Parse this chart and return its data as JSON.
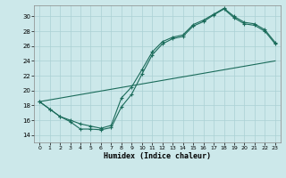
{
  "xlabel": "Humidex (Indice chaleur)",
  "bg_color": "#cce8ea",
  "grid_color": "#aad0d4",
  "line_color": "#1a6b5a",
  "ylim": [
    13.0,
    31.5
  ],
  "xlim": [
    -0.5,
    23.5
  ],
  "yticks": [
    14,
    16,
    18,
    20,
    22,
    24,
    26,
    28,
    30
  ],
  "xticks": [
    0,
    1,
    2,
    3,
    4,
    5,
    6,
    7,
    8,
    9,
    10,
    11,
    12,
    13,
    14,
    15,
    16,
    17,
    18,
    19,
    20,
    21,
    22,
    23
  ],
  "curve1_x": [
    0,
    1,
    2,
    3,
    4,
    5,
    6,
    7,
    8,
    9,
    10,
    11,
    12,
    13,
    14,
    15,
    16,
    17,
    18,
    19,
    20,
    21,
    22,
    23
  ],
  "curve1_y": [
    18.5,
    17.5,
    16.5,
    15.8,
    14.8,
    14.8,
    14.7,
    15.0,
    17.8,
    19.5,
    22.2,
    24.8,
    26.3,
    27.0,
    27.3,
    28.7,
    29.3,
    30.2,
    31.0,
    29.8,
    29.0,
    28.8,
    28.0,
    26.3
  ],
  "curve2_x": [
    0,
    1,
    2,
    3,
    4,
    5,
    6,
    7,
    8,
    9,
    10,
    11,
    12,
    13,
    14,
    15,
    16,
    17,
    18,
    19,
    20,
    21,
    22,
    23
  ],
  "curve2_y": [
    18.5,
    17.5,
    16.5,
    16.0,
    15.5,
    15.2,
    14.9,
    15.3,
    19.0,
    20.5,
    22.8,
    25.2,
    26.6,
    27.2,
    27.5,
    28.9,
    29.5,
    30.3,
    31.1,
    30.0,
    29.2,
    29.0,
    28.2,
    26.5
  ],
  "line3_x": [
    0,
    23
  ],
  "line3_y": [
    18.5,
    24.0
  ]
}
